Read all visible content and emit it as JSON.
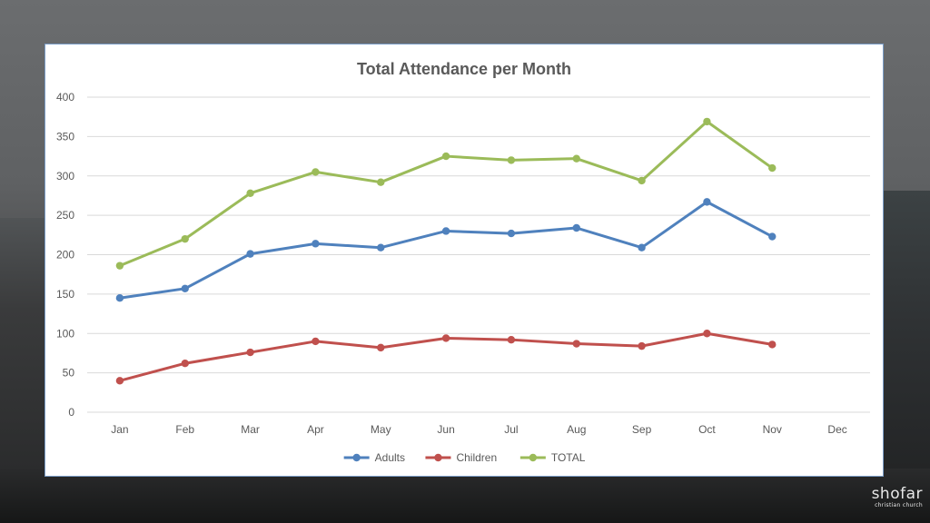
{
  "chart_data": {
    "type": "line",
    "title": "Total Attendance per Month",
    "categories": [
      "Jan",
      "Feb",
      "Mar",
      "Apr",
      "May",
      "Jun",
      "Jul",
      "Aug",
      "Sep",
      "Oct",
      "Nov",
      "Dec"
    ],
    "yticks": [
      0,
      50,
      100,
      150,
      200,
      250,
      300,
      350,
      400
    ],
    "ylim": [
      0,
      400
    ],
    "grid": true,
    "legend": "bottom",
    "series": [
      {
        "name": "Adults",
        "color": "#4f81bd",
        "values": [
          145,
          157,
          201,
          214,
          209,
          230,
          227,
          234,
          209,
          267,
          223,
          null
        ]
      },
      {
        "name": "Children",
        "color": "#c0504d",
        "values": [
          40,
          62,
          76,
          90,
          82,
          94,
          92,
          87,
          84,
          100,
          86,
          null
        ]
      },
      {
        "name": "TOTAL",
        "color": "#9bbb59",
        "values": [
          186,
          220,
          278,
          305,
          292,
          325,
          320,
          322,
          294,
          369,
          310,
          null
        ]
      }
    ]
  },
  "logo": {
    "name": "shofar",
    "tagline": "christian church"
  }
}
